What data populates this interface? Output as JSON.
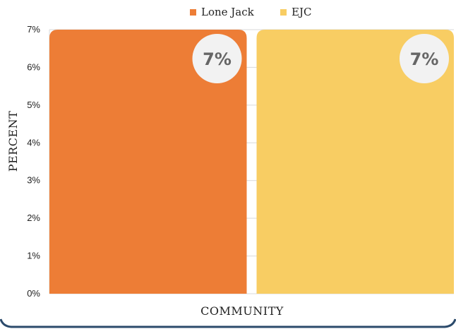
{
  "chart_data": {
    "type": "bar",
    "categories": [
      "COMMUNITY"
    ],
    "series": [
      {
        "name": "Lone Jack",
        "values": [
          7
        ],
        "color": "#ED7D36",
        "data_label": "7%"
      },
      {
        "name": "EJC",
        "values": [
          7
        ],
        "color": "#F8CD63",
        "data_label": "7%"
      }
    ],
    "xlabel": "COMMUNITY",
    "ylabel": "PERCENT",
    "ylim": [
      0,
      7
    ],
    "yticks": [
      "0%",
      "1%",
      "2%",
      "3%",
      "4%",
      "5%",
      "6%",
      "7%"
    ],
    "grid": true,
    "legend_position": "top-center"
  },
  "colors": {
    "frame_border": "#2B4A6B",
    "gridline": "#D9D9D9"
  }
}
